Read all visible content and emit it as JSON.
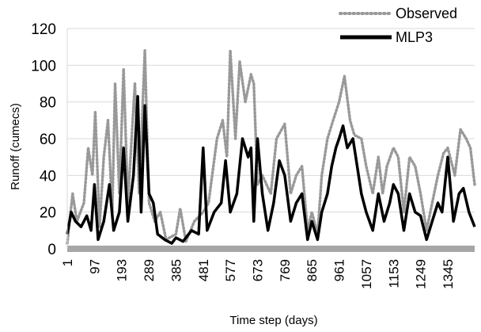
{
  "chart_data": {
    "type": "line",
    "xlabel": "Time step (days)",
    "ylabel": "Runoff (cumecs)",
    "xlim": [
      1,
      1440
    ],
    "ylim": [
      0,
      120
    ],
    "y_ticks": [
      0,
      20,
      40,
      60,
      80,
      100,
      120
    ],
    "x_ticks": [
      1,
      97,
      193,
      289,
      385,
      481,
      577,
      673,
      769,
      865,
      961,
      1057,
      1153,
      1249,
      1345
    ],
    "grid": true,
    "legend_position": "top-right",
    "series": [
      {
        "name": "Observed",
        "style": "dotted",
        "color": "#999999",
        "points": [
          [
            1,
            3
          ],
          [
            20,
            30
          ],
          [
            35,
            15
          ],
          [
            60,
            25
          ],
          [
            75,
            55
          ],
          [
            90,
            40
          ],
          [
            100,
            75
          ],
          [
            115,
            12
          ],
          [
            130,
            50
          ],
          [
            145,
            70
          ],
          [
            160,
            20
          ],
          [
            170,
            90
          ],
          [
            185,
            30
          ],
          [
            200,
            98
          ],
          [
            215,
            25
          ],
          [
            240,
            90
          ],
          [
            255,
            30
          ],
          [
            275,
            108
          ],
          [
            290,
            25
          ],
          [
            310,
            15
          ],
          [
            330,
            20
          ],
          [
            350,
            5
          ],
          [
            385,
            8
          ],
          [
            400,
            22
          ],
          [
            420,
            4
          ],
          [
            450,
            15
          ],
          [
            481,
            20
          ],
          [
            500,
            25
          ],
          [
            530,
            60
          ],
          [
            550,
            70
          ],
          [
            565,
            50
          ],
          [
            577,
            108
          ],
          [
            595,
            60
          ],
          [
            610,
            102
          ],
          [
            630,
            80
          ],
          [
            650,
            95
          ],
          [
            660,
            90
          ],
          [
            673,
            35
          ],
          [
            690,
            40
          ],
          [
            720,
            30
          ],
          [
            740,
            60
          ],
          [
            769,
            68
          ],
          [
            790,
            30
          ],
          [
            810,
            40
          ],
          [
            830,
            45
          ],
          [
            850,
            10
          ],
          [
            865,
            20
          ],
          [
            885,
            8
          ],
          [
            900,
            40
          ],
          [
            920,
            60
          ],
          [
            940,
            70
          ],
          [
            961,
            80
          ],
          [
            980,
            94
          ],
          [
            1000,
            70
          ],
          [
            1015,
            62
          ],
          [
            1040,
            60
          ],
          [
            1057,
            45
          ],
          [
            1080,
            30
          ],
          [
            1100,
            50
          ],
          [
            1115,
            30
          ],
          [
            1130,
            45
          ],
          [
            1153,
            55
          ],
          [
            1170,
            50
          ],
          [
            1190,
            20
          ],
          [
            1210,
            50
          ],
          [
            1230,
            45
          ],
          [
            1249,
            30
          ],
          [
            1270,
            10
          ],
          [
            1290,
            25
          ],
          [
            1310,
            40
          ],
          [
            1330,
            52
          ],
          [
            1345,
            55
          ],
          [
            1370,
            40
          ],
          [
            1390,
            65
          ],
          [
            1410,
            60
          ],
          [
            1425,
            55
          ],
          [
            1440,
            35
          ]
        ]
      },
      {
        "name": "MLP3",
        "style": "solid",
        "color": "#000000",
        "points": [
          [
            1,
            8
          ],
          [
            15,
            20
          ],
          [
            30,
            15
          ],
          [
            50,
            12
          ],
          [
            70,
            18
          ],
          [
            85,
            10
          ],
          [
            97,
            35
          ],
          [
            110,
            5
          ],
          [
            130,
            15
          ],
          [
            150,
            35
          ],
          [
            165,
            10
          ],
          [
            185,
            20
          ],
          [
            200,
            55
          ],
          [
            215,
            15
          ],
          [
            235,
            40
          ],
          [
            250,
            83
          ],
          [
            262,
            20
          ],
          [
            275,
            78
          ],
          [
            290,
            30
          ],
          [
            305,
            25
          ],
          [
            320,
            8
          ],
          [
            345,
            5
          ],
          [
            370,
            3
          ],
          [
            385,
            6
          ],
          [
            410,
            4
          ],
          [
            440,
            10
          ],
          [
            465,
            8
          ],
          [
            481,
            55
          ],
          [
            495,
            10
          ],
          [
            520,
            20
          ],
          [
            545,
            25
          ],
          [
            560,
            48
          ],
          [
            577,
            20
          ],
          [
            600,
            30
          ],
          [
            620,
            60
          ],
          [
            640,
            50
          ],
          [
            650,
            55
          ],
          [
            660,
            15
          ],
          [
            673,
            60
          ],
          [
            690,
            30
          ],
          [
            710,
            10
          ],
          [
            730,
            25
          ],
          [
            750,
            48
          ],
          [
            769,
            40
          ],
          [
            790,
            15
          ],
          [
            810,
            25
          ],
          [
            830,
            30
          ],
          [
            850,
            5
          ],
          [
            865,
            15
          ],
          [
            885,
            5
          ],
          [
            900,
            20
          ],
          [
            920,
            30
          ],
          [
            935,
            45
          ],
          [
            950,
            55
          ],
          [
            961,
            60
          ],
          [
            975,
            67
          ],
          [
            990,
            55
          ],
          [
            1010,
            60
          ],
          [
            1025,
            45
          ],
          [
            1040,
            30
          ],
          [
            1057,
            20
          ],
          [
            1080,
            10
          ],
          [
            1100,
            30
          ],
          [
            1120,
            15
          ],
          [
            1140,
            25
          ],
          [
            1153,
            35
          ],
          [
            1170,
            30
          ],
          [
            1190,
            10
          ],
          [
            1210,
            30
          ],
          [
            1230,
            20
          ],
          [
            1249,
            18
          ],
          [
            1270,
            5
          ],
          [
            1290,
            15
          ],
          [
            1310,
            25
          ],
          [
            1325,
            20
          ],
          [
            1345,
            50
          ],
          [
            1365,
            15
          ],
          [
            1385,
            30
          ],
          [
            1400,
            33
          ],
          [
            1420,
            20
          ],
          [
            1440,
            12
          ]
        ]
      }
    ]
  }
}
